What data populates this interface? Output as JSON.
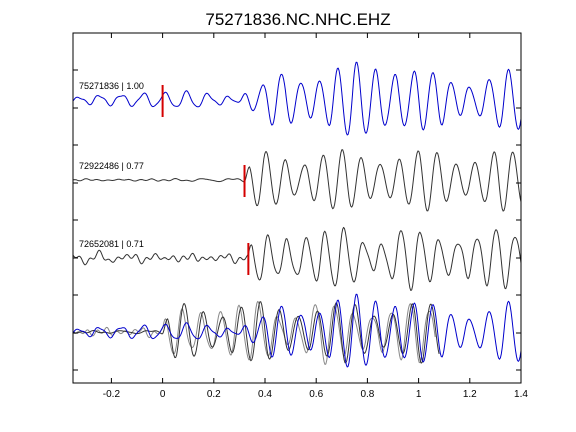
{
  "chart_data": {
    "type": "line",
    "title": "75271836.NC.NHC.EHZ",
    "xlim": [
      -0.35,
      1.4
    ],
    "x_ticks": [
      -0.2,
      0,
      0.2,
      0.4,
      0.6,
      0.8,
      1,
      1.2,
      1.4
    ],
    "x_tick_labels": [
      "-0.2",
      "0",
      "0.2",
      "0.4",
      "0.6",
      "0.8",
      "1",
      "1.2",
      "1.4"
    ],
    "colors": {
      "blue": "#0000cc",
      "dark": "#333333",
      "gray": "#888888",
      "pick": "#d40000"
    },
    "traces": [
      {
        "label": "75271836 | 1.00",
        "color": "#0000cc",
        "pick_x": 0.0,
        "pre_amp": 0.32,
        "post_amp": 1.0,
        "onset": 0.0,
        "arrival": 0.4,
        "freq": 13.5,
        "phase": 0.0
      },
      {
        "label": "72922486 | 0.77",
        "color": "#333333",
        "pick_x": 0.32,
        "pre_amp": 0.08,
        "post_amp": 0.95,
        "onset": 0.32,
        "arrival": 0.34,
        "freq": 13.5,
        "phase": 0.6
      },
      {
        "label": "72652081 | 0.71",
        "color": "#333333",
        "pick_x": 0.335,
        "pre_amp": 0.22,
        "post_amp": 0.95,
        "onset": 0.335,
        "arrival": 0.35,
        "freq": 13.5,
        "phase": 1.2
      }
    ],
    "overlay": {
      "colors": [
        "#888888",
        "#333333",
        "#0000cc"
      ]
    }
  }
}
